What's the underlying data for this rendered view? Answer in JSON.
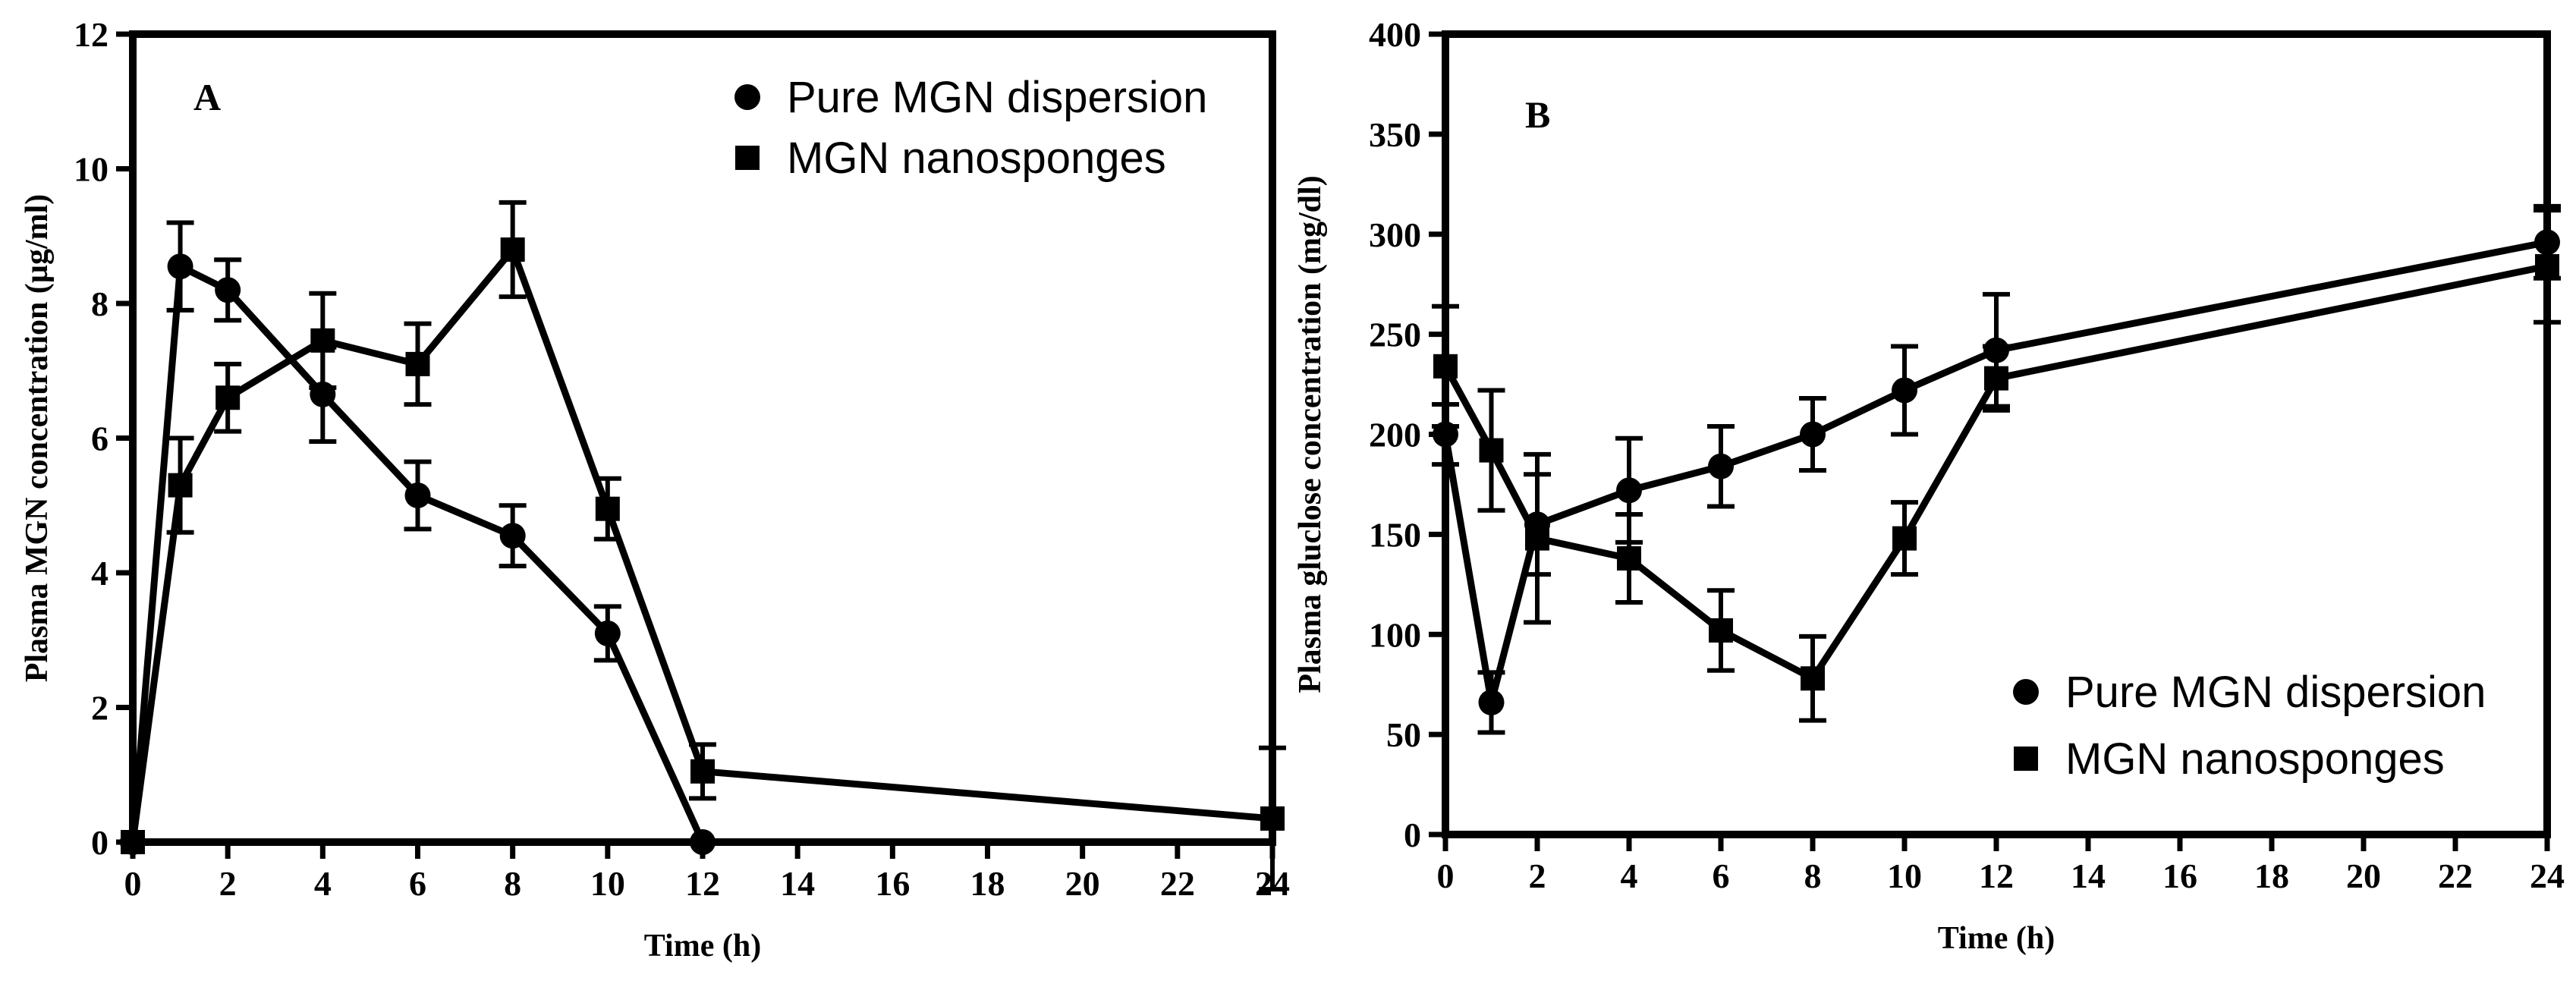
{
  "chart_data": [
    {
      "type": "line",
      "panel_label": "A",
      "xlabel": "Time (h)",
      "ylabel": "Plasma MGN concentration (µg/ml)",
      "xlim": [
        0,
        24
      ],
      "ylim": [
        0,
        12
      ],
      "xticks": [
        "0",
        "2",
        "4",
        "6",
        "8",
        "10",
        "12",
        "14",
        "16",
        "18",
        "20",
        "22",
        "24"
      ],
      "yticks": [
        "0",
        "2",
        "4",
        "6",
        "8",
        "10",
        "12"
      ],
      "legend_position": "top-right",
      "series": [
        {
          "name": "Pure MGN dispersion",
          "marker": "circle",
          "x": [
            0,
            1,
            2,
            4,
            6,
            8,
            10,
            12
          ],
          "y": [
            0,
            8.55,
            8.2,
            6.65,
            5.15,
            4.55,
            3.1,
            0
          ],
          "err": [
            0,
            0.65,
            0.45,
            0.7,
            0.5,
            0.45,
            0.4,
            0
          ]
        },
        {
          "name": "MGN nanosponges",
          "marker": "square",
          "x": [
            0,
            1,
            2,
            4,
            6,
            8,
            10,
            12,
            24
          ],
          "y": [
            0,
            5.3,
            6.6,
            7.45,
            7.1,
            8.8,
            4.95,
            1.05,
            0.35
          ],
          "err": [
            0,
            0.7,
            0.5,
            0.7,
            0.6,
            0.7,
            0.45,
            0.4,
            1.05
          ]
        }
      ]
    },
    {
      "type": "line",
      "panel_label": "B",
      "xlabel": "Time (h)",
      "ylabel": "Plasma gluclose concentration (mg/dl)",
      "xlim": [
        0,
        24
      ],
      "ylim": [
        0,
        400
      ],
      "xticks": [
        "0",
        "2",
        "4",
        "6",
        "8",
        "10",
        "12",
        "14",
        "16",
        "18",
        "20",
        "22",
        "24"
      ],
      "yticks": [
        "0",
        "50",
        "100",
        "150",
        "200",
        "250",
        "300",
        "350",
        "400"
      ],
      "legend_position": "bottom-right",
      "series": [
        {
          "name": "Pure MGN dispersion",
          "marker": "circle",
          "x": [
            0,
            1,
            2,
            4,
            6,
            8,
            10,
            12,
            24
          ],
          "y": [
            200,
            66,
            155,
            172,
            184,
            200,
            222,
            242,
            296
          ],
          "err": [
            15,
            15,
            25,
            26,
            20,
            18,
            22,
            28,
            18
          ]
        },
        {
          "name": "MGN nanosponges",
          "marker": "square",
          "x": [
            0,
            1,
            2,
            4,
            6,
            8,
            10,
            12,
            24
          ],
          "y": [
            234,
            192,
            148,
            138,
            102,
            78,
            148,
            228,
            284
          ],
          "err": [
            30,
            30,
            42,
            22,
            20,
            21,
            18,
            16,
            28
          ]
        }
      ]
    }
  ]
}
